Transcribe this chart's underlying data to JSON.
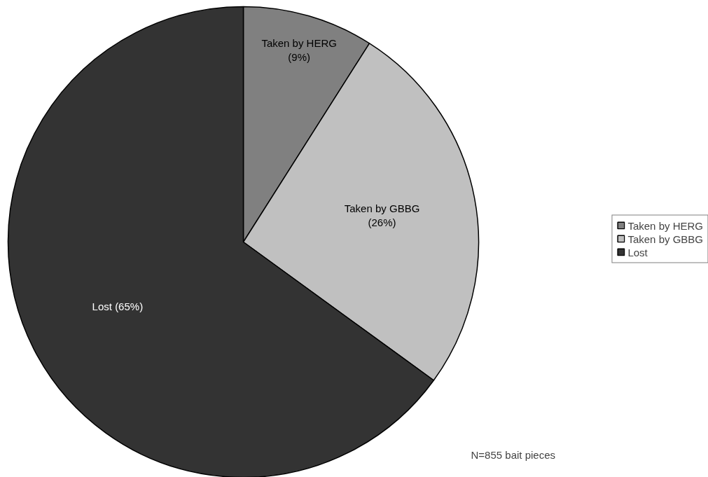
{
  "chart_data": {
    "type": "pie",
    "categories": [
      "Taken by HERG",
      "Taken by GBBG",
      "Lost"
    ],
    "values": [
      9,
      26,
      65
    ],
    "colors": [
      "#808080",
      "#c0c0c0",
      "#333333"
    ],
    "value_labels": [
      "Taken by HERG\n(9%)",
      "Taken by GBBG\n(26%)",
      "Lost (65%)"
    ],
    "legend": "right",
    "annotations": [
      "N=855 bait pieces"
    ]
  }
}
